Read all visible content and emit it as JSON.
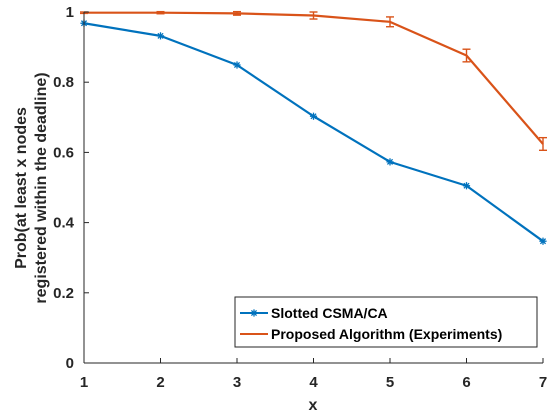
{
  "chart_data": {
    "type": "line",
    "title": "",
    "xlabel": "x",
    "ylabel_lines": [
      "Prob(at least x nodes",
      "registered within the deadline)"
    ],
    "x": [
      1,
      2,
      3,
      4,
      5,
      6,
      7
    ],
    "xlim": [
      1,
      7
    ],
    "ylim": [
      0,
      1
    ],
    "x_ticks": [
      "1",
      "2",
      "3",
      "4",
      "5",
      "6",
      "7"
    ],
    "y_ticks": [
      "0",
      "0.2",
      "0.4",
      "0.6",
      "0.8",
      "1"
    ],
    "grid": false,
    "legend_position": "bottom-right",
    "series": [
      {
        "name": "Slotted CSMA/CA",
        "color": "#0072BD",
        "marker": "asterisk",
        "values": [
          0.968,
          0.932,
          0.849,
          0.703,
          0.573,
          0.505,
          0.347
        ]
      },
      {
        "name": "Proposed Algorithm (Experiments)",
        "color": "#D95319",
        "marker": "none",
        "values": [
          0.998,
          0.998,
          0.996,
          0.99,
          0.972,
          0.876,
          0.624
        ],
        "error": [
          0.002,
          0.003,
          0.005,
          0.01,
          0.014,
          0.018,
          0.018
        ]
      }
    ]
  }
}
